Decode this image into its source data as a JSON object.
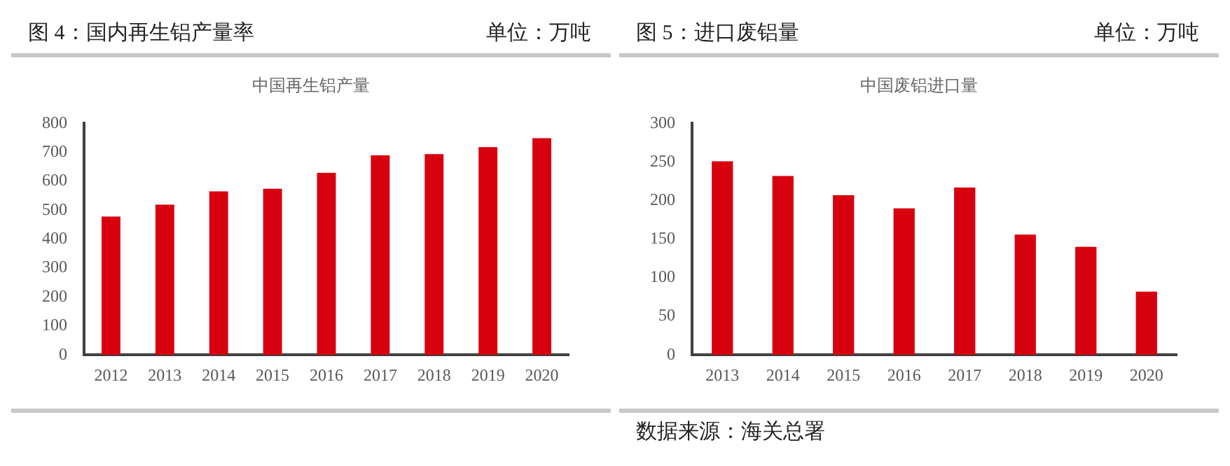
{
  "chart_data": [
    {
      "type": "bar",
      "title": "图 4：国内再生铝产量率",
      "subtitle": "中国再生铝产量",
      "annotations": [
        "单位：万吨"
      ],
      "categories": [
        "2012",
        "2013",
        "2014",
        "2015",
        "2016",
        "2017",
        "2018",
        "2019",
        "2020"
      ],
      "values": [
        478,
        519,
        565,
        574,
        629,
        690,
        694,
        718,
        749
      ],
      "color": "#d7000f",
      "ylim": [
        0,
        800
      ],
      "yticks": [
        0,
        100,
        200,
        300,
        400,
        500,
        600,
        700,
        800
      ],
      "grid": false,
      "legend": false
    },
    {
      "type": "bar",
      "title": "图 5：进口废铝量",
      "subtitle": "中国废铝进口量",
      "annotations": [
        "单位：万吨",
        "数据来源：海关总署"
      ],
      "categories": [
        "2013",
        "2014",
        "2015",
        "2016",
        "2017",
        "2018",
        "2019",
        "2020"
      ],
      "values": [
        251,
        232,
        207,
        190,
        217,
        156,
        140,
        82
      ],
      "color": "#d7000f",
      "ylim": [
        0,
        300
      ],
      "yticks": [
        0,
        50,
        100,
        150,
        200,
        250,
        300
      ],
      "grid": false,
      "legend": false
    }
  ]
}
